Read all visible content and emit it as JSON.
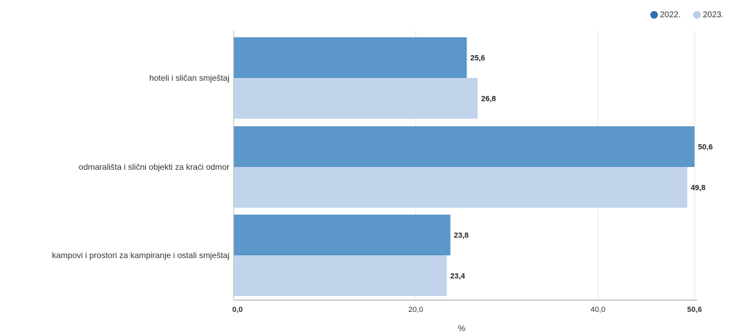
{
  "chart_data": {
    "type": "bar",
    "orientation": "horizontal",
    "categories": [
      "hoteli i sličan smještaj",
      "odmarališta i slični objekti za kraći odmor",
      "kampovi i prostori za kampiranje i ostali smještaj"
    ],
    "series": [
      {
        "name": "2022.",
        "color": "#5b97c9",
        "values": [
          25.6,
          50.6,
          23.8
        ],
        "labels": [
          "25,6",
          "50,6",
          "23,8"
        ]
      },
      {
        "name": "2023.",
        "color": "#c1d4ec",
        "values": [
          26.8,
          49.8,
          23.4
        ],
        "labels": [
          "26,8",
          "49,8",
          "23,4"
        ]
      }
    ],
    "xlabel": "%",
    "xlim": [
      0,
      50.6
    ],
    "x_ticks": [
      {
        "value": 0,
        "label": "0,0",
        "bold": true
      },
      {
        "value": 20,
        "label": "20,0",
        "bold": false
      },
      {
        "value": 40,
        "label": "40,0",
        "bold": false
      },
      {
        "value": 50.6,
        "label": "50,6",
        "bold": true
      }
    ],
    "grid": true,
    "legend_position": "top-right"
  }
}
